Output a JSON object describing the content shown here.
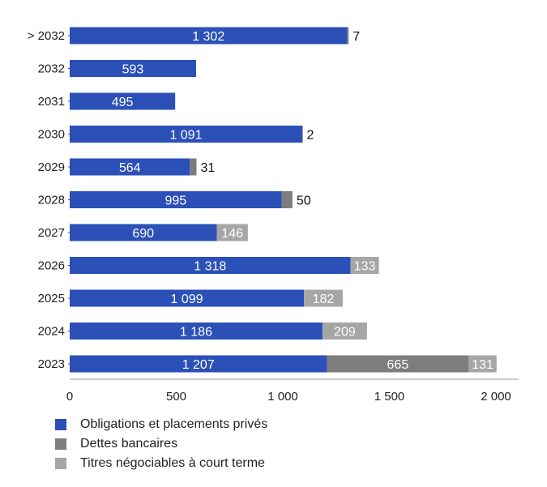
{
  "colors": {
    "obligations": "#2b50b7",
    "dettes": "#7d7d7d",
    "titres": "#a6a6a6",
    "axis": "#9a9a9a",
    "label_inside": "#ffffff",
    "label_outside": "#111111"
  },
  "legend": [
    {
      "label": "Obligations et placements privés",
      "color": "#2b50b7"
    },
    {
      "label": "Dettes bancaires",
      "color": "#7d7d7d"
    },
    {
      "label": "Titres négociables à court terme",
      "color": "#a6a6a6"
    }
  ],
  "chart_data": {
    "type": "bar",
    "orientation": "horizontal",
    "stacked": true,
    "categories": [
      ">2032",
      "2032",
      "2031",
      "2030",
      "2029",
      "2028",
      "2027",
      "2026",
      "2025",
      "2024",
      "2023"
    ],
    "category_labels": [
      "> 2032",
      "2032",
      "2031",
      "2030",
      "2029",
      "2028",
      "2027",
      "2026",
      "2025",
      "2024",
      "2023"
    ],
    "series": [
      {
        "name": "Obligations et placements privés",
        "values": [
          1302,
          593,
          495,
          1091,
          564,
          995,
          690,
          1318,
          1099,
          1186,
          1207
        ]
      },
      {
        "name": "Dettes bancaires",
        "values": [
          7,
          0,
          0,
          2,
          31,
          50,
          0,
          0,
          0,
          0,
          665
        ]
      },
      {
        "name": "Titres négociables à court terme",
        "values": [
          0,
          0,
          0,
          0,
          0,
          0,
          146,
          133,
          182,
          209,
          131
        ]
      }
    ],
    "data_labels": [
      [
        "1 302",
        "593",
        "495",
        "1 091",
        "564",
        "995",
        "690",
        "1 318",
        "1 099",
        "1 186",
        "1 207"
      ],
      [
        "7",
        "",
        "",
        "2",
        "31",
        "50",
        "",
        "",
        "",
        "",
        "665"
      ],
      [
        "",
        "",
        "",
        "",
        "",
        "",
        "146",
        "133",
        "182",
        "209",
        "131"
      ]
    ],
    "xlim": [
      0,
      2000
    ],
    "xticks": [
      0,
      500,
      1000,
      1500,
      2000
    ],
    "xtick_labels": [
      "0",
      "500",
      "1 000",
      "1 500",
      "2 000"
    ],
    "legend_position": "bottom",
    "grid": false
  }
}
